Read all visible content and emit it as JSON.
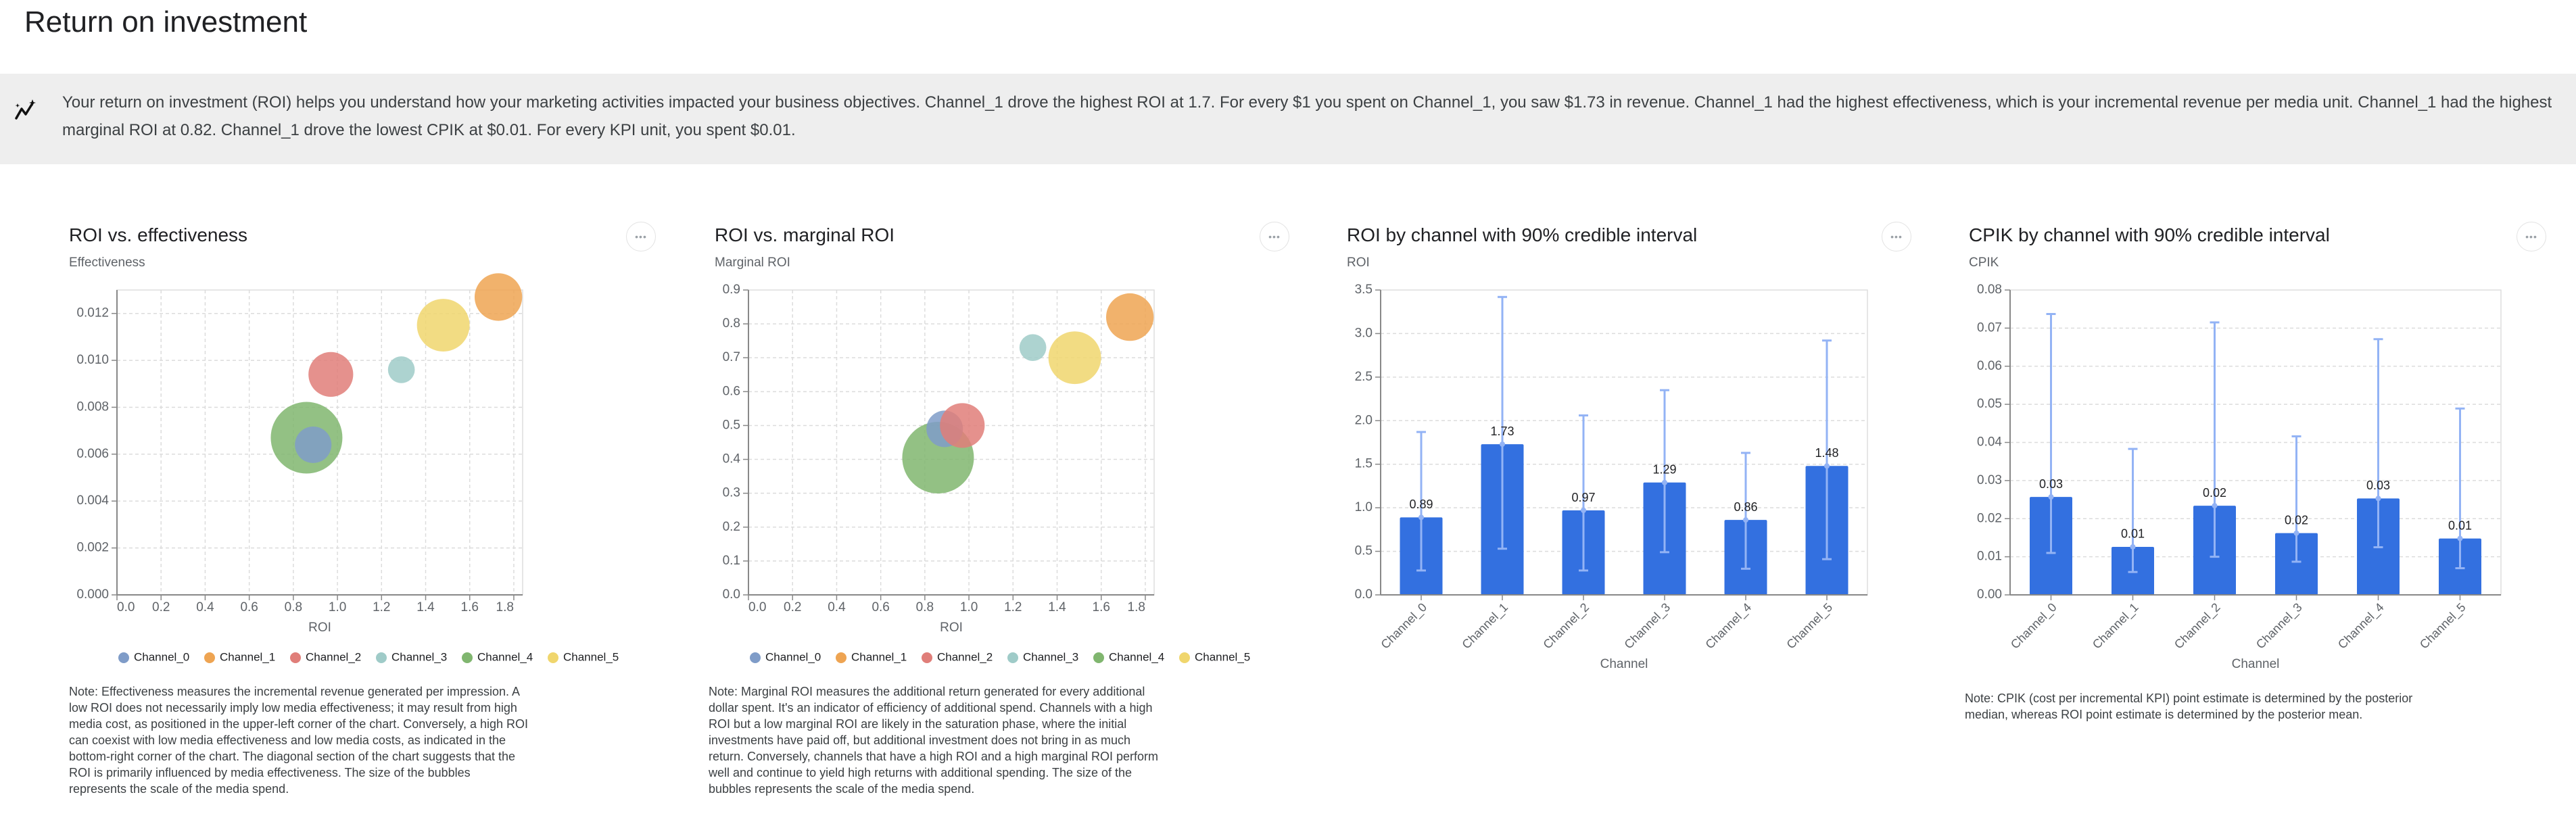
{
  "page": {
    "title": "Return on investment"
  },
  "banner": {
    "icon": "insights-sparkle-icon",
    "text": "Your return on investment (ROI) helps you understand how your marketing activities impacted your business objectives. Channel_1 drove the highest ROI at 1.7. For every $1 you spent on Channel_1, you saw $1.73 in revenue. Channel_1 had the highest effectiveness, which is your incremental revenue per media unit. Channel_1 had the highest marginal ROI at 0.82. Channel_1 drove the lowest CPIK at $0.01. For every KPI unit, you spent $0.01."
  },
  "menu_icon": "more-horizontal-icon",
  "menu_glyph": "•••",
  "notes": {
    "effectiveness": "Note: Effectiveness measures the incremental revenue generated per impression. A low ROI does not necessarily imply low media effectiveness; it may result from high media cost, as positioned in the upper-left corner of the chart. Conversely, a high ROI can coexist with low media effectiveness and low media costs, as indicated in the bottom-right corner of the chart. The diagonal section of the chart suggests that the ROI is primarily influenced by media effectiveness. The size of the bubbles represents the scale of the media spend.",
    "marginal_roi": "Note: Marginal ROI measures the additional return generated for every additional dollar spent. It's an indicator of efficiency of additional spend. Channels with a high ROI but a low marginal ROI are likely in the saturation phase, where the initial investments have paid off, but additional investment does not bring in as much return. Conversely, channels that have a high ROI and a high marginal ROI perform well and continue to yield high returns with additional spending. The size of the bubbles represents the scale of the media spend.",
    "cpik": "Note: CPIK (cost per incremental KPI) point estimate is determined by the posterior median, whereas ROI point estimate is determined by the posterior mean."
  },
  "colors": {
    "Channel_0": "#7f9cc8",
    "Channel_1": "#eea452",
    "Channel_2": "#e07e79",
    "Channel_3": "#9fcbc8",
    "Channel_4": "#80b66f",
    "Channel_5": "#f0d66d",
    "bar": "#3370e0",
    "error_bar": "#93b3f5"
  },
  "chart_data": [
    {
      "type": "scatter",
      "title": "ROI vs. effectiveness",
      "ylabel": "Effectiveness",
      "xlabel": "ROI",
      "xlim": [
        0,
        1.84
      ],
      "ylim": [
        0,
        0.013
      ],
      "xticks": [
        "0.0",
        "0.2",
        "0.4",
        "0.6",
        "0.8",
        "1.0",
        "1.2",
        "1.4",
        "1.6",
        "1.8"
      ],
      "yticks": [
        "0.000",
        "0.002",
        "0.004",
        "0.006",
        "0.008",
        "0.010",
        "0.012"
      ],
      "grid": true,
      "legend": "bottom",
      "series": [
        {
          "name": "Channel_4",
          "x": 0.86,
          "y": 0.0067,
          "relative_spend": 1.0
        },
        {
          "name": "Channel_5",
          "x": 1.48,
          "y": 0.0115,
          "relative_spend": 0.54
        },
        {
          "name": "Channel_1",
          "x": 1.73,
          "y": 0.0127,
          "relative_spend": 0.44
        },
        {
          "name": "Channel_2",
          "x": 0.97,
          "y": 0.0094,
          "relative_spend": 0.39
        },
        {
          "name": "Channel_0",
          "x": 0.89,
          "y": 0.0064,
          "relative_spend": 0.26
        },
        {
          "name": "Channel_3",
          "x": 1.29,
          "y": 0.0096,
          "relative_spend": 0.14
        }
      ],
      "legend_entries": [
        "Channel_0",
        "Channel_1",
        "Channel_2",
        "Channel_3",
        "Channel_4",
        "Channel_5"
      ]
    },
    {
      "type": "scatter",
      "title": "ROI vs. marginal ROI",
      "ylabel": "Marginal ROI",
      "xlabel": "ROI",
      "xlim": [
        0,
        1.84
      ],
      "ylim": [
        0,
        0.9
      ],
      "xticks": [
        "0.0",
        "0.2",
        "0.4",
        "0.6",
        "0.8",
        "1.0",
        "1.2",
        "1.4",
        "1.6",
        "1.8"
      ],
      "yticks": [
        "0.0",
        "0.1",
        "0.2",
        "0.3",
        "0.4",
        "0.5",
        "0.6",
        "0.7",
        "0.8",
        "0.9"
      ],
      "grid": true,
      "legend": "bottom",
      "series": [
        {
          "name": "Channel_4",
          "x": 0.86,
          "y": 0.405,
          "relative_spend": 1.0
        },
        {
          "name": "Channel_5",
          "x": 1.48,
          "y": 0.7,
          "relative_spend": 0.54
        },
        {
          "name": "Channel_1",
          "x": 1.73,
          "y": 0.82,
          "relative_spend": 0.44
        },
        {
          "name": "Channel_0",
          "x": 0.89,
          "y": 0.49,
          "relative_spend": 0.26
        },
        {
          "name": "Channel_2",
          "x": 0.97,
          "y": 0.5,
          "relative_spend": 0.39
        },
        {
          "name": "Channel_3",
          "x": 1.29,
          "y": 0.73,
          "relative_spend": 0.14
        }
      ],
      "legend_entries": [
        "Channel_0",
        "Channel_1",
        "Channel_2",
        "Channel_3",
        "Channel_4",
        "Channel_5"
      ]
    },
    {
      "type": "bar",
      "title": "ROI by channel with 90% credible interval",
      "ylabel": "ROI",
      "xlabel": "Channel",
      "ylim": [
        0,
        3.5
      ],
      "yticks": [
        "0.0",
        "0.5",
        "1.0",
        "1.5",
        "2.0",
        "2.5",
        "3.0",
        "3.5"
      ],
      "grid": true,
      "categories": [
        "Channel_0",
        "Channel_1",
        "Channel_2",
        "Channel_3",
        "Channel_4",
        "Channel_5"
      ],
      "values": [
        0.89,
        1.73,
        0.97,
        1.29,
        0.86,
        1.48
      ],
      "labels": [
        "0.89",
        "1.73",
        "0.97",
        "1.29",
        "0.86",
        "1.48"
      ],
      "ci_low": [
        0.28,
        0.53,
        0.28,
        0.49,
        0.3,
        0.41
      ],
      "ci_high": [
        1.87,
        3.42,
        2.06,
        2.35,
        1.63,
        2.92
      ]
    },
    {
      "type": "bar",
      "title": "CPIK by channel with 90% credible interval",
      "ylabel": "CPIK",
      "xlabel": "Channel",
      "ylim": [
        0,
        0.08
      ],
      "yticks": [
        "0.00",
        "0.01",
        "0.02",
        "0.03",
        "0.04",
        "0.05",
        "0.06",
        "0.07",
        "0.08"
      ],
      "grid": true,
      "categories": [
        "Channel_0",
        "Channel_1",
        "Channel_2",
        "Channel_3",
        "Channel_4",
        "Channel_5"
      ],
      "values": [
        0.0257,
        0.0126,
        0.0234,
        0.0162,
        0.0253,
        0.0148
      ],
      "labels": [
        "0.03",
        "0.01",
        "0.02",
        "0.02",
        "0.03",
        "0.01"
      ],
      "ci_low": [
        0.011,
        0.006,
        0.01,
        0.0087,
        0.0125,
        0.007
      ],
      "ci_high": [
        0.0737,
        0.0383,
        0.0715,
        0.0416,
        0.0671,
        0.0489
      ]
    }
  ]
}
